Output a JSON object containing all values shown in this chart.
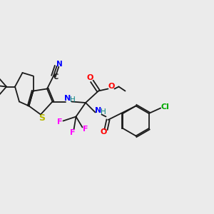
{
  "background_color": "#ebebeb",
  "figsize": [
    3.0,
    3.0
  ],
  "dpi": 100,
  "bond_color": "#1a1a1a",
  "lw": 1.3,
  "colors": {
    "S": "#b8b800",
    "N": "#0000ff",
    "O": "#ff0000",
    "F": "#ff00ff",
    "Cl": "#00aa00",
    "C": "#1a1a1a",
    "H": "#008080"
  }
}
